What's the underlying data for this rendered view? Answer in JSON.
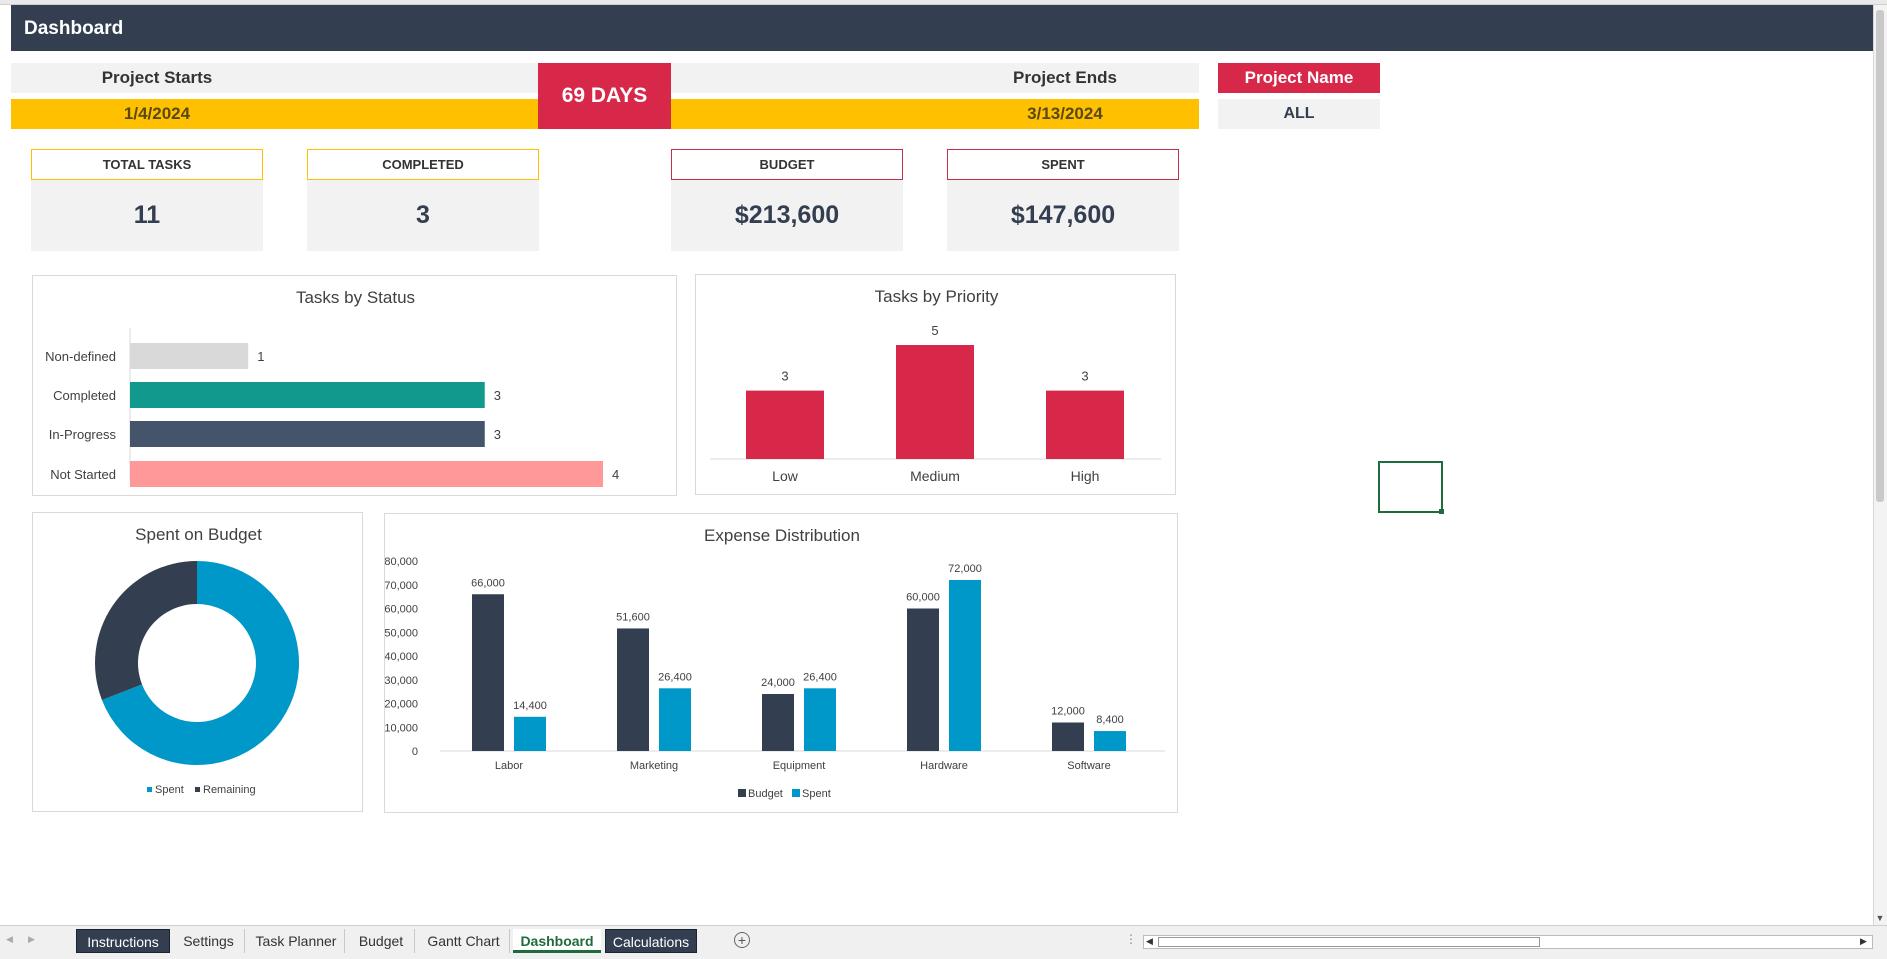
{
  "header": {
    "title": "Dashboard"
  },
  "timeline": {
    "starts_label": "Project Starts",
    "starts_value": "1/4/2024",
    "ends_label": "Project Ends",
    "ends_value": "3/13/2024",
    "duration": "69 DAYS"
  },
  "project": {
    "label": "Project Name",
    "value": "ALL"
  },
  "kpis": [
    {
      "label": "TOTAL TASKS",
      "value": "11",
      "border_color": "#ffc000"
    },
    {
      "label": "COMPLETED",
      "value": "3",
      "border_color": "#ffc000"
    },
    {
      "label": "BUDGET",
      "value": "$213,600",
      "border_color": "#c0304a"
    },
    {
      "label": "SPENT",
      "value": "$147,600",
      "border_color": "#c0304a"
    }
  ],
  "colors": {
    "header": "#333f50",
    "accent_red": "#d7284a",
    "gold": "#ffc000",
    "teal": "#12998e",
    "slate": "#44546a",
    "pink": "#ff9999",
    "grey": "#d9d9d9",
    "blue": "#0097c9",
    "navy": "#333f50"
  },
  "chart_data": [
    {
      "type": "bar",
      "orientation": "horizontal",
      "title": "Tasks by Status",
      "categories": [
        "Non-defined",
        "Completed",
        "In-Progress",
        "Not Started"
      ],
      "values": [
        1,
        3,
        3,
        4
      ],
      "colors": [
        "#d9d9d9",
        "#12998e",
        "#44546a",
        "#ff9999"
      ],
      "xlim": [
        0,
        4
      ],
      "grid": false
    },
    {
      "type": "bar",
      "title": "Tasks by Priority",
      "categories": [
        "Low",
        "Medium",
        "High"
      ],
      "values": [
        3,
        5,
        3
      ],
      "color": "#d7284a",
      "ylim": [
        0,
        5
      ],
      "grid": false
    },
    {
      "type": "pie",
      "variant": "donut",
      "title": "Spent on Budget",
      "labels": [
        "Spent",
        "Remaining"
      ],
      "values": [
        147600,
        66000
      ],
      "colors": [
        "#0097c9",
        "#333f50"
      ],
      "legend": "bottom"
    },
    {
      "type": "bar",
      "title": "Expense Distribution",
      "categories": [
        "Labor",
        "Marketing",
        "Equipment",
        "Hardware",
        "Software"
      ],
      "series": [
        {
          "name": "Budget",
          "values": [
            66000,
            51600,
            24000,
            60000,
            12000
          ],
          "color": "#333f50"
        },
        {
          "name": "Spent",
          "values": [
            14400,
            26400,
            26400,
            72000,
            8400
          ],
          "color": "#0097c9"
        }
      ],
      "value_labels": {
        "Budget": [
          "66,000",
          "51,600",
          "24,000",
          "60,000",
          "12,000"
        ],
        "Spent": [
          "14,400",
          "26,400",
          "26,400",
          "72,000",
          "8,400"
        ]
      },
      "yticks": [
        "0",
        "10,000",
        "20,000",
        "30,000",
        "40,000",
        "50,000",
        "60,000",
        "70,000",
        "80,000"
      ],
      "ylim": [
        0,
        80000
      ],
      "legend": "bottom",
      "grid": false
    }
  ],
  "sheet_tabs": [
    {
      "label": "Instructions",
      "style": "dark"
    },
    {
      "label": "Settings",
      "style": "light"
    },
    {
      "label": "Task Planner",
      "style": "light"
    },
    {
      "label": "Budget",
      "style": "light"
    },
    {
      "label": "Gantt Chart",
      "style": "light"
    },
    {
      "label": "Dashboard",
      "style": "active"
    },
    {
      "label": "Calculations",
      "style": "dark"
    }
  ],
  "icons": {
    "add_sheet": "plus-circle-icon",
    "scroll_left": "triangle-left-icon",
    "scroll_right": "triangle-right-icon"
  }
}
